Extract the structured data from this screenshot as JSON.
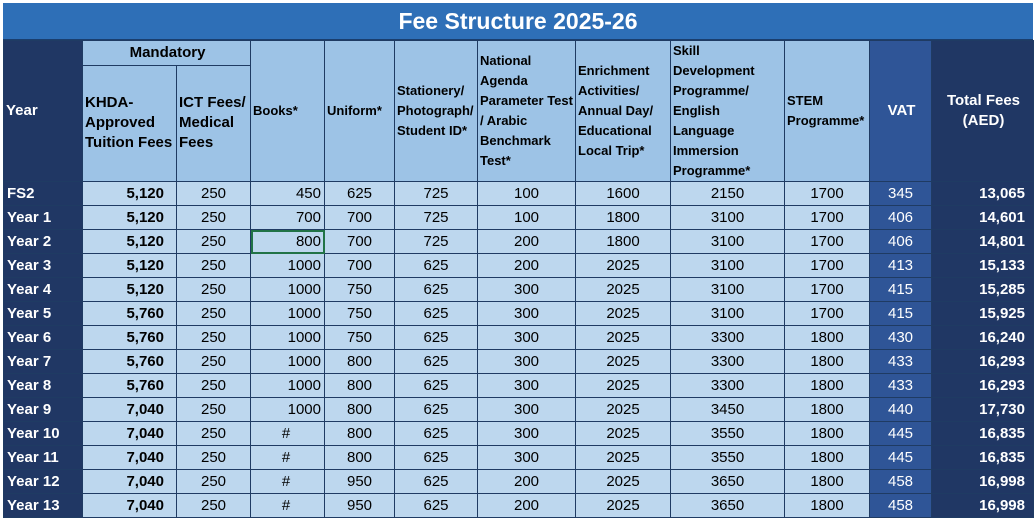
{
  "title": "Fee Structure 2025-26",
  "headers": {
    "year": "Year",
    "mandatory": "Mandatory",
    "khda": "KHDA-Approved Tuition Fees",
    "ict": "ICT Fees/ Medical Fees",
    "books": "Books*",
    "uniform": "Uniform*",
    "stationery": "Stationery/ Photograph/ Student ID*",
    "national": "National Agenda Parameter Test / Arabic Benchmark Test*",
    "enrichment": "Enrichment Activities/ Annual Day/ Educational Local Trip*",
    "skill": "Skill Development Programme/ English Language Immersion Programme*",
    "stem": "STEM Programme*",
    "vat": "VAT",
    "total": "Total Fees (AED)"
  },
  "rows": [
    {
      "year": "FS2",
      "khda": "5,120",
      "ict": "250",
      "books": "450",
      "uniform": "625",
      "stationery": "725",
      "national": "100",
      "enrichment": "1600",
      "skill": "2150",
      "stem": "1700",
      "vat": "345",
      "total": "13,065"
    },
    {
      "year": "Year 1",
      "khda": "5,120",
      "ict": "250",
      "books": "700",
      "uniform": "700",
      "stationery": "725",
      "national": "100",
      "enrichment": "1800",
      "skill": "3100",
      "stem": "1700",
      "vat": "406",
      "total": "14,601"
    },
    {
      "year": "Year 2",
      "khda": "5,120",
      "ict": "250",
      "books": "800",
      "uniform": "700",
      "stationery": "725",
      "national": "200",
      "enrichment": "1800",
      "skill": "3100",
      "stem": "1700",
      "vat": "406",
      "total": "14,801"
    },
    {
      "year": "Year 3",
      "khda": "5,120",
      "ict": "250",
      "books": "1000",
      "uniform": "700",
      "stationery": "625",
      "national": "200",
      "enrichment": "2025",
      "skill": "3100",
      "stem": "1700",
      "vat": "413",
      "total": "15,133"
    },
    {
      "year": "Year 4",
      "khda": "5,120",
      "ict": "250",
      "books": "1000",
      "uniform": "750",
      "stationery": "625",
      "national": "300",
      "enrichment": "2025",
      "skill": "3100",
      "stem": "1700",
      "vat": "415",
      "total": "15,285"
    },
    {
      "year": "Year 5",
      "khda": "5,760",
      "ict": "250",
      "books": "1000",
      "uniform": "750",
      "stationery": "625",
      "national": "300",
      "enrichment": "2025",
      "skill": "3100",
      "stem": "1700",
      "vat": "415",
      "total": "15,925"
    },
    {
      "year": "Year 6",
      "khda": "5,760",
      "ict": "250",
      "books": "1000",
      "uniform": "750",
      "stationery": "625",
      "national": "300",
      "enrichment": "2025",
      "skill": "3300",
      "stem": "1800",
      "vat": "430",
      "total": "16,240"
    },
    {
      "year": "Year 7",
      "khda": "5,760",
      "ict": "250",
      "books": "1000",
      "uniform": "800",
      "stationery": "625",
      "national": "300",
      "enrichment": "2025",
      "skill": "3300",
      "stem": "1800",
      "vat": "433",
      "total": "16,293"
    },
    {
      "year": "Year 8",
      "khda": "5,760",
      "ict": "250",
      "books": "1000",
      "uniform": "800",
      "stationery": "625",
      "national": "300",
      "enrichment": "2025",
      "skill": "3300",
      "stem": "1800",
      "vat": "433",
      "total": "16,293"
    },
    {
      "year": "Year 9",
      "khda": "7,040",
      "ict": "250",
      "books": "1000",
      "uniform": "800",
      "stationery": "625",
      "national": "300",
      "enrichment": "2025",
      "skill": "3450",
      "stem": "1800",
      "vat": "440",
      "total": "17,730"
    },
    {
      "year": "Year 10",
      "khda": "7,040",
      "ict": "250",
      "books": "#",
      "uniform": "800",
      "stationery": "625",
      "national": "300",
      "enrichment": "2025",
      "skill": "3550",
      "stem": "1800",
      "vat": "445",
      "total": "16,835"
    },
    {
      "year": "Year 11",
      "khda": "7,040",
      "ict": "250",
      "books": "#",
      "uniform": "800",
      "stationery": "625",
      "national": "300",
      "enrichment": "2025",
      "skill": "3550",
      "stem": "1800",
      "vat": "445",
      "total": "16,835"
    },
    {
      "year": "Year 12",
      "khda": "7,040",
      "ict": "250",
      "books": "#",
      "uniform": "950",
      "stationery": "625",
      "national": "200",
      "enrichment": "2025",
      "skill": "3650",
      "stem": "1800",
      "vat": "458",
      "total": "16,998"
    },
    {
      "year": "Year 13",
      "khda": "7,040",
      "ict": "250",
      "books": "#",
      "uniform": "950",
      "stationery": "625",
      "national": "200",
      "enrichment": "2025",
      "skill": "3650",
      "stem": "1800",
      "vat": "458",
      "total": "16,998"
    }
  ],
  "selected_cell": {
    "row": "Year 2",
    "column": "books"
  },
  "colors": {
    "title_bg": "#2e6fb7",
    "header_bg": "#9dc3e6",
    "cell_bg": "#bdd7ee",
    "dark_bg": "#203764",
    "vat_bg": "#2f5597",
    "selection": "#217346"
  }
}
